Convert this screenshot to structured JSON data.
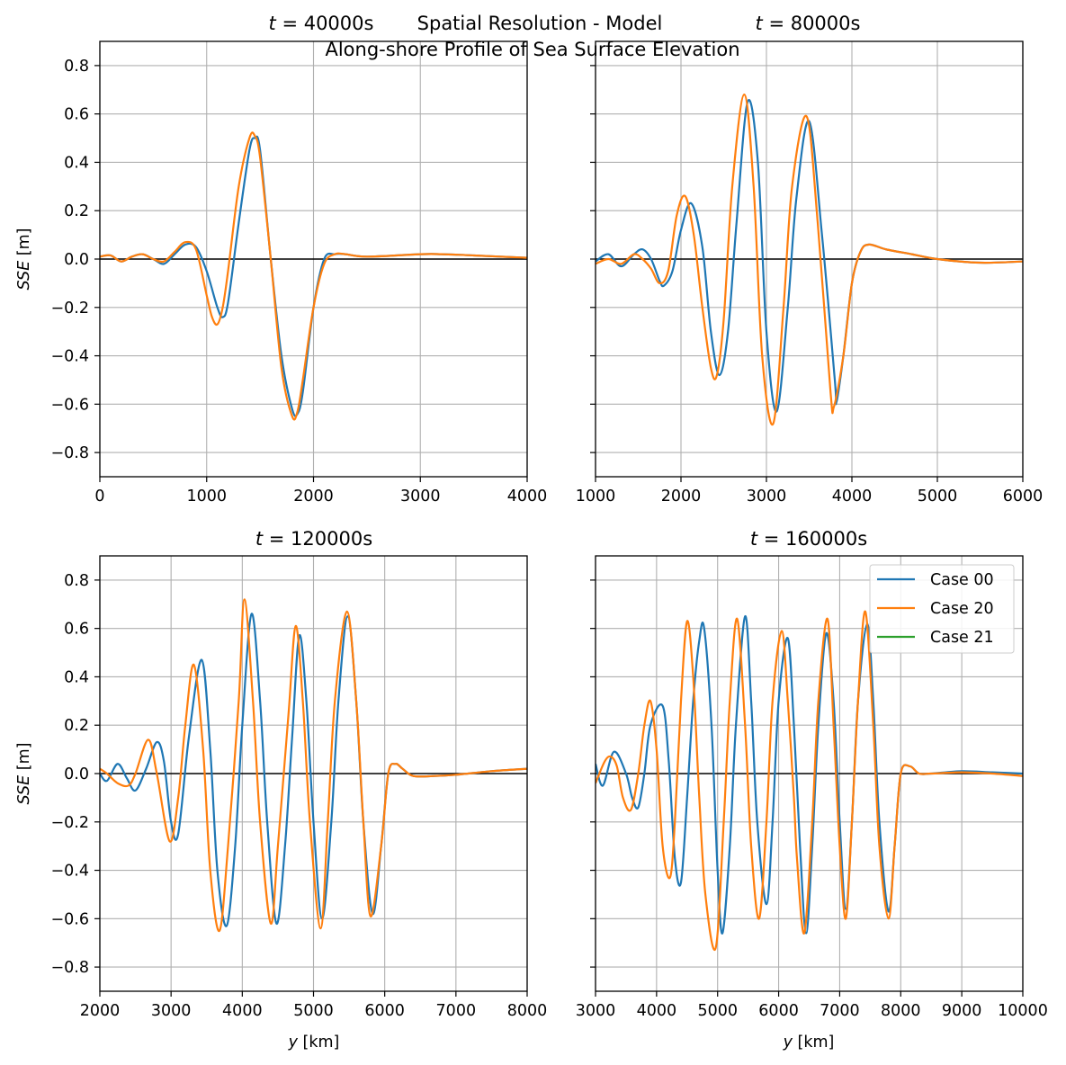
{
  "figure": {
    "suptitle_line1": "Spatial Resolution - Model",
    "suptitle_line2": "Along-shore Profile of Sea Surface Elevation"
  },
  "legend": [
    "Case 00",
    "Case 20",
    "Case 21"
  ],
  "colors": {
    "case00": "#1f77b4",
    "case20": "#ff7f0e",
    "case21": "#2ca02c",
    "zero_line": "#000000",
    "grid": "#b0b0b0"
  },
  "chart_data": [
    {
      "type": "line",
      "title": "t = 40000s",
      "xlabel": "",
      "ylabel": "SSE [m]",
      "xlim": [
        0,
        4000
      ],
      "ylim": [
        -0.9,
        0.9
      ],
      "xticks": [
        0,
        1000,
        2000,
        3000,
        4000
      ],
      "yticks": [
        -0.8,
        -0.6,
        -0.4,
        -0.2,
        0.0,
        0.2,
        0.4,
        0.6,
        0.8
      ],
      "grid": true,
      "zero_line": true,
      "series": [
        {
          "name": "Case 00",
          "x": [
            0,
            100,
            200,
            300,
            400,
            500,
            600,
            700,
            800,
            900,
            1000,
            1100,
            1150,
            1200,
            1300,
            1400,
            1450,
            1500,
            1600,
            1700,
            1800,
            1850,
            1900,
            2000,
            2100,
            2200,
            2300,
            2500,
            3000,
            3200,
            3500,
            4000
          ],
          "y": [
            0.01,
            0.015,
            -0.01,
            0.01,
            0.02,
            0.0,
            -0.02,
            0.02,
            0.06,
            0.05,
            -0.05,
            -0.2,
            -0.24,
            -0.18,
            0.15,
            0.45,
            0.5,
            0.45,
            0.0,
            -0.4,
            -0.62,
            -0.64,
            -0.55,
            -0.2,
            0.0,
            0.02,
            0.02,
            0.01,
            0.02,
            0.02,
            0.015,
            0.005
          ]
        },
        {
          "name": "Case 20",
          "x": [
            0,
            100,
            200,
            300,
            400,
            500,
            600,
            700,
            800,
            900,
            1000,
            1050,
            1100,
            1150,
            1200,
            1300,
            1400,
            1450,
            1500,
            1600,
            1700,
            1800,
            1850,
            1900,
            2000,
            2100,
            2200,
            2300,
            2500,
            3000,
            3200,
            3500,
            4000
          ],
          "y": [
            0.01,
            0.015,
            -0.01,
            0.01,
            0.02,
            0.0,
            -0.01,
            0.03,
            0.07,
            0.04,
            -0.15,
            -0.24,
            -0.27,
            -0.2,
            -0.05,
            0.3,
            0.5,
            0.51,
            0.42,
            0.0,
            -0.45,
            -0.65,
            -0.63,
            -0.5,
            -0.2,
            -0.02,
            0.02,
            0.02,
            0.01,
            0.02,
            0.02,
            0.015,
            0.005
          ]
        },
        {
          "name": "Case 21",
          "x": [],
          "y": []
        }
      ]
    },
    {
      "type": "line",
      "title": "t = 80000s",
      "xlabel": "",
      "ylabel": "",
      "xlim": [
        1000,
        6000
      ],
      "ylim": [
        -0.9,
        0.9
      ],
      "xticks": [
        1000,
        2000,
        3000,
        4000,
        5000,
        6000
      ],
      "yticks": [
        -0.8,
        -0.6,
        -0.4,
        -0.2,
        0.0,
        0.2,
        0.4,
        0.6,
        0.8
      ],
      "grid": true,
      "zero_line": true,
      "series": [
        {
          "name": "Case 00",
          "x": [
            1000,
            1150,
            1300,
            1450,
            1550,
            1650,
            1750,
            1800,
            1900,
            2000,
            2120,
            2250,
            2350,
            2450,
            2550,
            2650,
            2780,
            2900,
            3000,
            3120,
            3250,
            3350,
            3500,
            3650,
            3800,
            3820,
            3900,
            4000,
            4100,
            4200,
            4400,
            4700,
            5000,
            5500,
            6000
          ],
          "y": [
            -0.01,
            0.02,
            -0.03,
            0.02,
            0.04,
            0.0,
            -0.09,
            -0.11,
            -0.05,
            0.12,
            0.23,
            0.05,
            -0.3,
            -0.48,
            -0.3,
            0.15,
            0.65,
            0.4,
            -0.3,
            -0.63,
            -0.2,
            0.25,
            0.57,
            0.1,
            -0.5,
            -0.59,
            -0.4,
            -0.1,
            0.03,
            0.06,
            0.04,
            0.02,
            0.0,
            -0.015,
            -0.01
          ]
        },
        {
          "name": "Case 20",
          "x": [
            1000,
            1150,
            1300,
            1450,
            1550,
            1650,
            1750,
            1850,
            1950,
            2050,
            2150,
            2250,
            2350,
            2420,
            2500,
            2600,
            2740,
            2850,
            2950,
            3080,
            3200,
            3300,
            3470,
            3600,
            3750,
            3790,
            3900,
            4000,
            4100,
            4200,
            4400,
            4700,
            5000,
            5500,
            6000
          ],
          "y": [
            -0.02,
            0.0,
            -0.02,
            0.02,
            0.0,
            -0.04,
            -0.1,
            -0.05,
            0.18,
            0.26,
            0.1,
            -0.2,
            -0.45,
            -0.48,
            -0.25,
            0.3,
            0.68,
            0.3,
            -0.4,
            -0.68,
            -0.2,
            0.3,
            0.59,
            0.15,
            -0.55,
            -0.61,
            -0.4,
            -0.1,
            0.03,
            0.06,
            0.04,
            0.02,
            0.0,
            -0.015,
            -0.01
          ]
        },
        {
          "name": "Case 21",
          "x": [],
          "y": []
        }
      ]
    },
    {
      "type": "line",
      "title": "t = 120000s",
      "xlabel": "y [km]",
      "ylabel": "SSE [m]",
      "xlim": [
        2000,
        8000
      ],
      "ylim": [
        -0.9,
        0.9
      ],
      "xticks": [
        2000,
        3000,
        4000,
        5000,
        6000,
        7000,
        8000
      ],
      "yticks": [
        -0.8,
        -0.6,
        -0.4,
        -0.2,
        0.0,
        0.2,
        0.4,
        0.6,
        0.8
      ],
      "grid": true,
      "zero_line": true,
      "series": [
        {
          "name": "Case 00",
          "x": [
            2000,
            2100,
            2250,
            2380,
            2500,
            2650,
            2800,
            2900,
            3000,
            3100,
            3250,
            3430,
            3550,
            3650,
            3780,
            3900,
            4000,
            4130,
            4250,
            4350,
            4480,
            4600,
            4700,
            4800,
            4900,
            5000,
            5120,
            5250,
            5350,
            5480,
            5600,
            5700,
            5830,
            5950,
            6050,
            6150,
            6250,
            6400,
            6700,
            7000,
            7500,
            8000
          ],
          "y": [
            0.0,
            -0.03,
            0.04,
            -0.02,
            -0.07,
            0.02,
            0.13,
            0.05,
            -0.2,
            -0.25,
            0.15,
            0.47,
            0.1,
            -0.4,
            -0.63,
            -0.3,
            0.2,
            0.66,
            0.3,
            -0.2,
            -0.62,
            -0.3,
            0.15,
            0.57,
            0.3,
            -0.2,
            -0.6,
            -0.2,
            0.3,
            0.65,
            0.3,
            -0.2,
            -0.58,
            -0.3,
            0.0,
            0.04,
            0.02,
            -0.01,
            -0.01,
            -0.005,
            0.01,
            0.02
          ]
        },
        {
          "name": "Case 20",
          "x": [
            2000,
            2100,
            2250,
            2400,
            2500,
            2680,
            2800,
            2980,
            3100,
            3200,
            3320,
            3450,
            3550,
            3680,
            3800,
            3950,
            4030,
            4150,
            4250,
            4400,
            4500,
            4650,
            4750,
            4850,
            4950,
            5100,
            5200,
            5300,
            5470,
            5600,
            5700,
            5800,
            5950,
            6050,
            6150,
            6250,
            6400,
            6700,
            7000,
            7500,
            8000
          ],
          "y": [
            0.02,
            0.0,
            -0.04,
            -0.05,
            0.0,
            0.14,
            0.0,
            -0.28,
            -0.1,
            0.2,
            0.45,
            0.1,
            -0.4,
            -0.65,
            -0.3,
            0.3,
            0.72,
            0.3,
            -0.2,
            -0.62,
            -0.3,
            0.25,
            0.61,
            0.3,
            -0.2,
            -0.64,
            -0.2,
            0.3,
            0.67,
            0.3,
            -0.2,
            -0.59,
            -0.3,
            0.0,
            0.04,
            0.02,
            -0.01,
            -0.01,
            -0.005,
            0.01,
            0.02
          ]
        },
        {
          "name": "Case 21",
          "x": [],
          "y": []
        }
      ]
    },
    {
      "type": "line",
      "title": "t = 160000s",
      "xlabel": "y [km]",
      "ylabel": "",
      "xlim": [
        3000,
        10000
      ],
      "ylim": [
        -0.9,
        0.9
      ],
      "xticks": [
        3000,
        4000,
        5000,
        6000,
        7000,
        8000,
        9000,
        10000
      ],
      "yticks": [
        -0.8,
        -0.6,
        -0.4,
        -0.2,
        0.0,
        0.2,
        0.4,
        0.6,
        0.8
      ],
      "grid": true,
      "zero_line": true,
      "legend": "top-right",
      "series": [
        {
          "name": "Case 00",
          "x": [
            3000,
            3120,
            3300,
            3500,
            3600,
            3700,
            3800,
            3900,
            4100,
            4200,
            4300,
            4400,
            4500,
            4600,
            4700,
            4780,
            4900,
            5000,
            5080,
            5200,
            5300,
            5450,
            5550,
            5650,
            5800,
            5900,
            6000,
            6150,
            6250,
            6350,
            6450,
            6550,
            6650,
            6780,
            6900,
            7000,
            7100,
            7200,
            7300,
            7450,
            7550,
            7650,
            7800,
            7900,
            8000,
            8150,
            8300,
            8500,
            9000,
            9500,
            10000
          ],
          "y": [
            0.04,
            -0.05,
            0.09,
            0.0,
            -0.1,
            -0.14,
            0.0,
            0.2,
            0.28,
            0.05,
            -0.35,
            -0.45,
            -0.1,
            0.3,
            0.55,
            0.6,
            0.2,
            -0.4,
            -0.66,
            -0.3,
            0.2,
            0.65,
            0.3,
            -0.2,
            -0.54,
            -0.2,
            0.3,
            0.56,
            0.2,
            -0.3,
            -0.66,
            -0.3,
            0.2,
            0.58,
            0.3,
            -0.2,
            -0.56,
            -0.2,
            0.3,
            0.62,
            0.3,
            -0.2,
            -0.57,
            -0.3,
            0.0,
            0.03,
            0.0,
            0.0,
            0.01,
            0.005,
            0.0
          ]
        },
        {
          "name": "Case 20",
          "x": [
            3000,
            3150,
            3250,
            3350,
            3450,
            3580,
            3700,
            3800,
            3900,
            4000,
            4100,
            4220,
            4300,
            4400,
            4500,
            4600,
            4700,
            4800,
            4970,
            5100,
            5200,
            5320,
            5450,
            5550,
            5680,
            5800,
            5900,
            6050,
            6150,
            6250,
            6300,
            6420,
            6550,
            6650,
            6800,
            6900,
            7000,
            7100,
            7200,
            7300,
            7420,
            7550,
            7650,
            7800,
            7900,
            8000,
            8150,
            8300,
            8500,
            9000,
            9500,
            10000
          ],
          "y": [
            -0.04,
            0.05,
            0.07,
            0.03,
            -0.1,
            -0.15,
            0.0,
            0.2,
            0.3,
            0.1,
            -0.3,
            -0.43,
            -0.2,
            0.3,
            0.63,
            0.4,
            -0.1,
            -0.5,
            -0.72,
            -0.2,
            0.3,
            0.64,
            0.2,
            -0.3,
            -0.6,
            -0.2,
            0.3,
            0.59,
            0.3,
            -0.1,
            -0.35,
            -0.66,
            -0.2,
            0.3,
            0.64,
            0.2,
            -0.3,
            -0.6,
            -0.2,
            0.3,
            0.67,
            0.2,
            -0.3,
            -0.6,
            -0.3,
            0.0,
            0.03,
            0.0,
            0.0,
            0.005,
            0.0,
            -0.01
          ]
        },
        {
          "name": "Case 21",
          "x": [],
          "y": []
        }
      ]
    }
  ]
}
